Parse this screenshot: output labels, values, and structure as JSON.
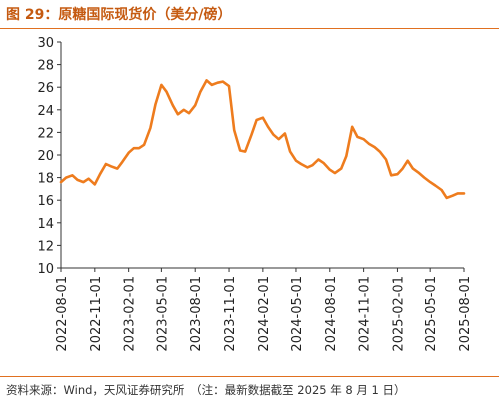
{
  "title": "图 29：原糖国际现货价（美分/磅）",
  "source": "资料来源：Wind，天风证券研究所　（注：最新数据截至 2025 年 8 月 1 日）",
  "chart_data": {
    "type": "line",
    "title": "图 29：原糖国际现货价（美分/磅）",
    "xlabel": "",
    "ylabel": "",
    "ylim": [
      10,
      30
    ],
    "yticks": [
      10,
      12,
      14,
      16,
      18,
      20,
      22,
      24,
      26,
      28,
      30
    ],
    "xlim": [
      "2022-08-01",
      "2025-08-01"
    ],
    "xticks": [
      "2022-08-01",
      "2022-11-01",
      "2023-02-01",
      "2023-05-01",
      "2023-08-01",
      "2023-11-01",
      "2024-02-01",
      "2024-05-01",
      "2024-08-01",
      "2024-11-01",
      "2025-02-01",
      "2025-05-01",
      "2025-08-01"
    ],
    "grid": false,
    "legend": "none",
    "color": "#ee7c1e",
    "series": [
      {
        "x": [
          "2022-08-01",
          "2022-08-15",
          "2022-09-01",
          "2022-09-15",
          "2022-10-01",
          "2022-10-15",
          "2022-11-01",
          "2022-11-15",
          "2022-12-01",
          "2022-12-15",
          "2023-01-01",
          "2023-01-15",
          "2023-02-01",
          "2023-02-15",
          "2023-03-01",
          "2023-03-15",
          "2023-04-01",
          "2023-04-15",
          "2023-05-01",
          "2023-05-15",
          "2023-06-01",
          "2023-06-15",
          "2023-07-01",
          "2023-07-15",
          "2023-08-01",
          "2023-08-15",
          "2023-09-01",
          "2023-09-15",
          "2023-10-01",
          "2023-10-15",
          "2023-11-01",
          "2023-11-15",
          "2023-12-01",
          "2023-12-15",
          "2024-01-01",
          "2024-01-15",
          "2024-02-01",
          "2024-02-15",
          "2024-03-01",
          "2024-03-15",
          "2024-04-01",
          "2024-04-15",
          "2024-05-01",
          "2024-05-15",
          "2024-06-01",
          "2024-06-15",
          "2024-07-01",
          "2024-07-15",
          "2024-08-01",
          "2024-08-15",
          "2024-09-01",
          "2024-09-15",
          "2024-10-01",
          "2024-10-15",
          "2024-11-01",
          "2024-11-15",
          "2024-12-01",
          "2024-12-15",
          "2025-01-01",
          "2025-01-15",
          "2025-02-01",
          "2025-02-15",
          "2025-03-01",
          "2025-03-15",
          "2025-04-01",
          "2025-04-15",
          "2025-05-01",
          "2025-05-15",
          "2025-06-01",
          "2025-06-15",
          "2025-07-01",
          "2025-07-15",
          "2025-08-01"
        ],
        "values": [
          17.6,
          18.0,
          18.2,
          17.8,
          17.6,
          17.9,
          17.4,
          18.3,
          19.2,
          19.0,
          18.8,
          19.4,
          20.2,
          20.6,
          20.6,
          20.9,
          22.4,
          24.5,
          26.2,
          25.6,
          24.4,
          23.6,
          24.0,
          23.7,
          24.4,
          25.6,
          26.6,
          26.2,
          26.4,
          26.5,
          26.1,
          22.2,
          20.4,
          20.3,
          21.8,
          23.1,
          23.3,
          22.5,
          21.8,
          21.4,
          21.9,
          20.3,
          19.5,
          19.2,
          18.9,
          19.1,
          19.6,
          19.3,
          18.7,
          18.4,
          18.8,
          19.9,
          22.5,
          21.6,
          21.4,
          21.0,
          20.7,
          20.3,
          19.6,
          18.2,
          18.3,
          18.8,
          19.5,
          18.8,
          18.4,
          18.0,
          17.6,
          17.3,
          16.9,
          16.2,
          16.4,
          16.6,
          16.6
        ]
      }
    ]
  }
}
